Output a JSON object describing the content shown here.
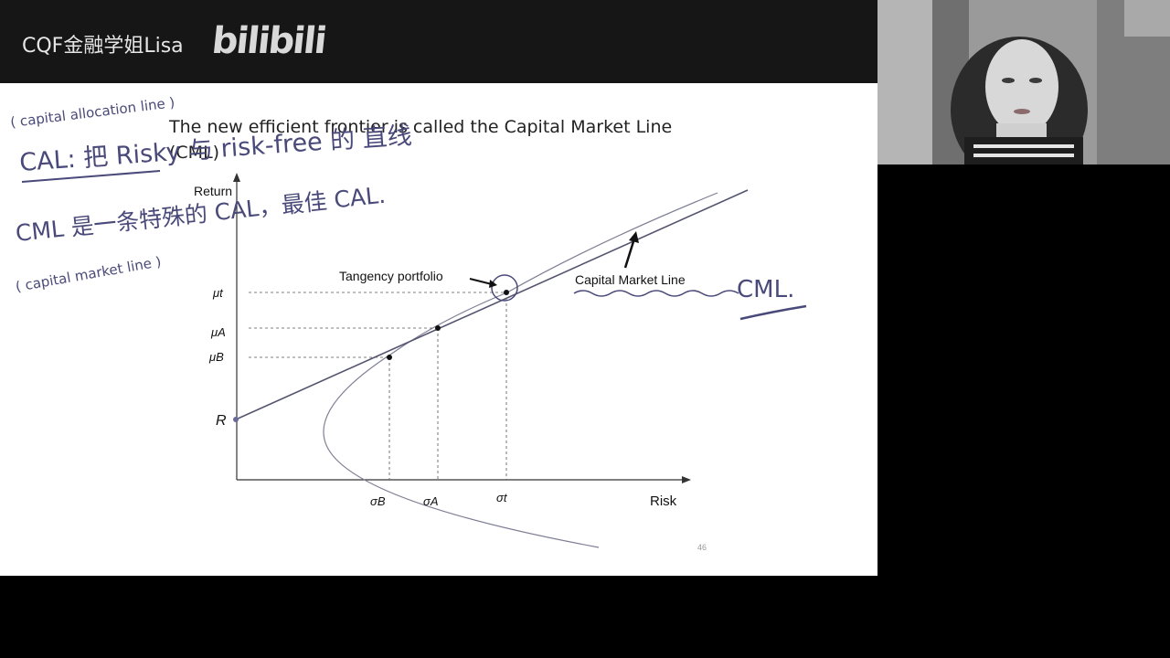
{
  "header": {
    "channel": "CQF金融学姐Lisa",
    "logo": "bilibili"
  },
  "slide": {
    "title": "The new efficient frontier is called the Capital Market Line (CML)",
    "page_number": "46",
    "diagram": {
      "y_axis_label": "Return",
      "x_axis_label": "Risk",
      "origin_label": "R",
      "y_ticks": [
        "μt",
        "μA",
        "μB"
      ],
      "x_ticks": [
        "σB",
        "σA",
        "σt"
      ],
      "tangency_label": "Tangency portfolio",
      "cml_label": "Capital Market Line"
    }
  },
  "annotations": {
    "cal_gloss": "( capital allocation line )",
    "cal_note": "CAL: 把 Risky 与 risk-free 的 直线",
    "cml_note": "CML 是一条特殊的 CAL，最佳 CAL.",
    "cml_gloss": "( capital market line )",
    "cml_mark": "CML."
  },
  "colors": {
    "ink": "#4a4a7a",
    "curve": "#7d7d95",
    "slide_bg": "#ffffff",
    "topbar_bg": "#161616"
  }
}
